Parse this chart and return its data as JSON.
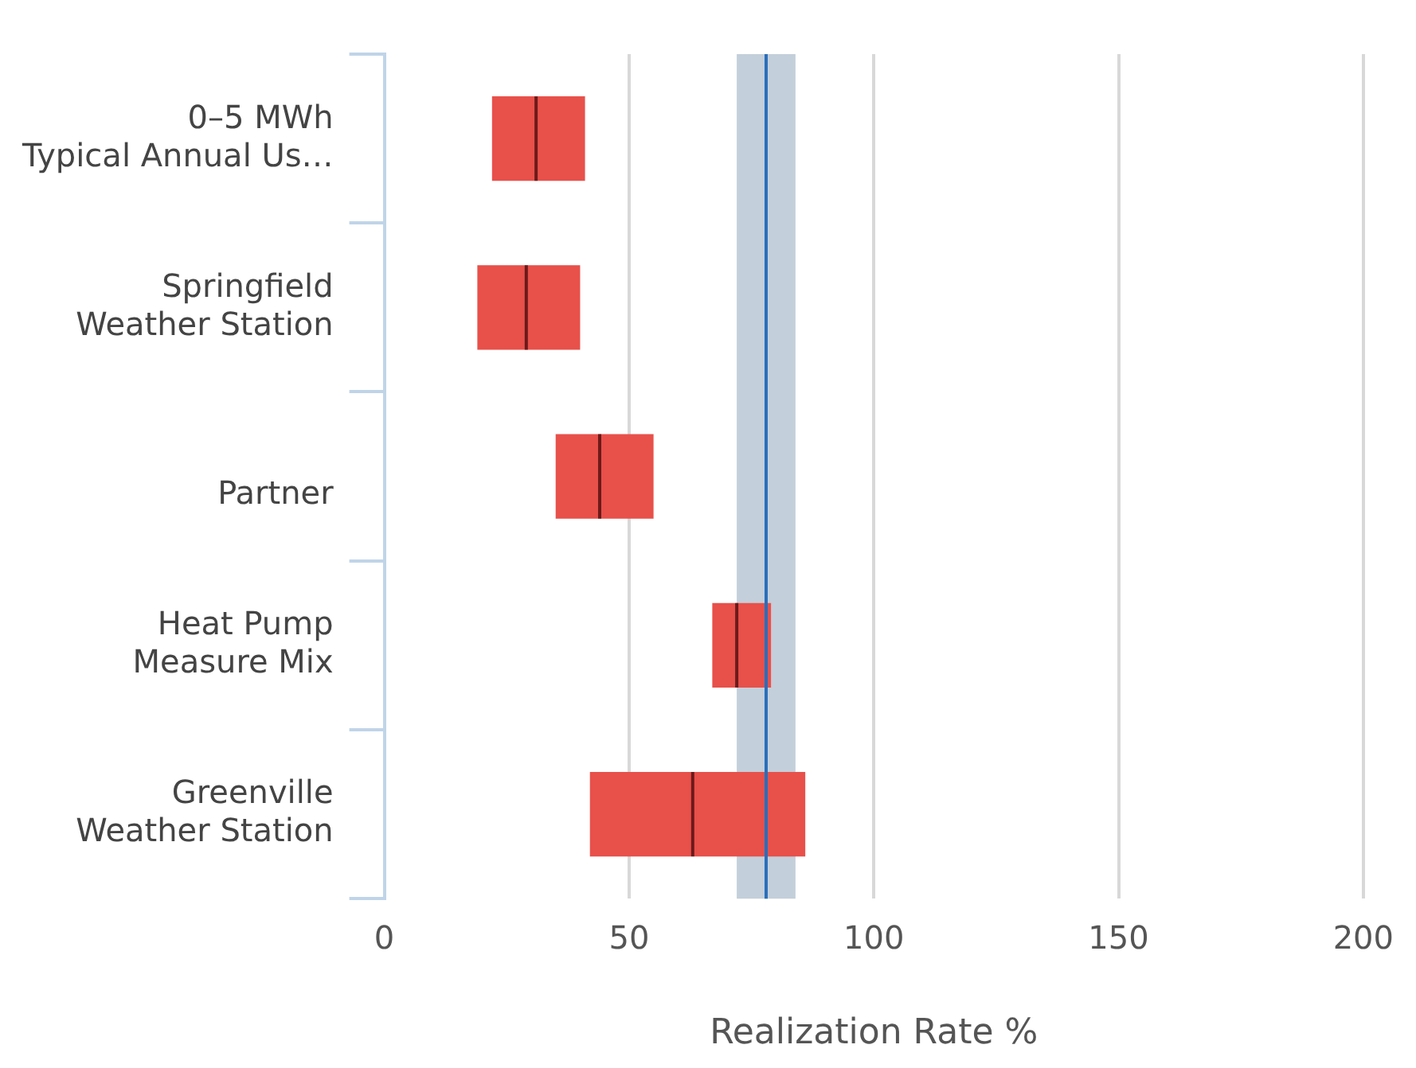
{
  "chart_data": {
    "type": "box",
    "orientation": "horizontal",
    "categories": [
      "0–5 MWh\nTypical Annual Us…",
      "Springfield\nWeather Station",
      "\nPartner",
      "Heat Pump\nMeasure Mix",
      "Greenville\nWeather Station"
    ],
    "boxes": [
      {
        "low": 22,
        "q1": 22,
        "median": 31,
        "q3": 41,
        "high": 41
      },
      {
        "low": 19,
        "q1": 19,
        "median": 29,
        "q3": 40,
        "high": 40
      },
      {
        "low": 35,
        "q1": 35,
        "median": 44,
        "q3": 55,
        "high": 55
      },
      {
        "low": 67,
        "q1": 67,
        "median": 72,
        "q3": 79,
        "high": 79
      },
      {
        "low": 42,
        "q1": 42,
        "median": 63,
        "q3": 86,
        "high": 86
      }
    ],
    "color": "#e8504a",
    "xlabel": "Realization Rate %",
    "xlim": [
      0,
      200
    ],
    "xticks": [
      0,
      50,
      100,
      150,
      200
    ],
    "grid": "x",
    "ref_lines": [
      {
        "axis": "x",
        "value": 78,
        "color": "#2a6ebb"
      }
    ],
    "bands": [
      {
        "axis": "x",
        "from": 72,
        "to": 84,
        "color": "#c3cfda"
      }
    ]
  }
}
